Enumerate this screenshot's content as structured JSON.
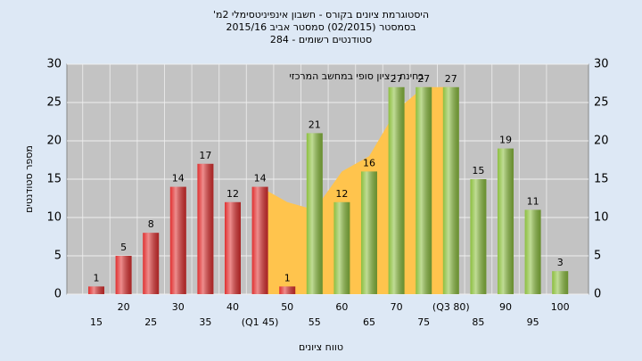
{
  "chart_data": {
    "type": "bar",
    "title": "היסטוגרמת ציונים בקורס - חשבון אינפיניטסימלי 2מ'",
    "subtitle": "בסמסטר (02/2015) סמסטר אביב 2015/16",
    "subtitle2": "סטודנטים רשומים - 284",
    "annotation": "בחינה : ציון סופי במחשב המרכזי",
    "x_label": "טווח ציונים",
    "y_label": "מספר סטודנטים",
    "categories": [
      "15",
      "20",
      "25",
      "30",
      "35",
      "40",
      "(Q1 45)",
      "50",
      "55",
      "60",
      "65",
      "70",
      "75",
      "(Q3 80)",
      "85",
      "90",
      "95",
      "100"
    ],
    "values": [
      1,
      5,
      8,
      14,
      17,
      12,
      14,
      1,
      21,
      12,
      16,
      27,
      27,
      27,
      15,
      19,
      11,
      3
    ],
    "colors": [
      "#e03030",
      "#e03030",
      "#e03030",
      "#e03030",
      "#e03030",
      "#e03030",
      "#e03030",
      "#e03030",
      "#8cbf3f",
      "#8cbf3f",
      "#8cbf3f",
      "#8cbf3f",
      "#8cbf3f",
      "#8cbf3f",
      "#8cbf3f",
      "#8cbf3f",
      "#8cbf3f",
      "#8cbf3f"
    ],
    "area": {
      "color": "#ffc44d",
      "values": [
        null,
        null,
        null,
        null,
        null,
        null,
        14,
        12,
        11,
        16,
        18,
        24,
        27,
        27,
        null,
        null,
        null,
        null
      ]
    },
    "ylim": [
      0,
      30
    ],
    "yticks": [
      0,
      5,
      10,
      15,
      20,
      25,
      30
    ],
    "grid": true
  }
}
